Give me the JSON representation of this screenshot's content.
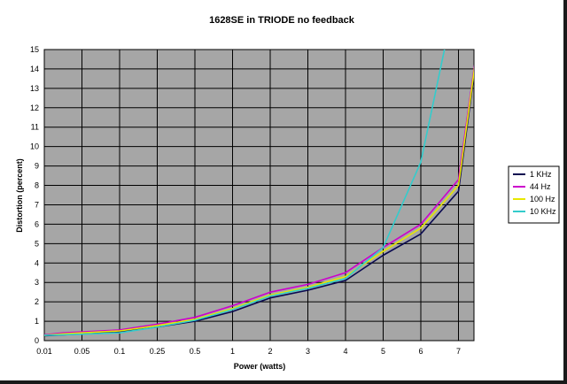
{
  "chart_data": {
    "type": "line",
    "title": "1628SE in TRIODE no feedback",
    "xlabel": "Power (watts)",
    "ylabel": "Distortion (percent)",
    "categories": [
      "0.01",
      "0.05",
      "0.1",
      "0.25",
      "0.5",
      "1",
      "2",
      "3",
      "4",
      "5",
      "6",
      "7"
    ],
    "ylim": [
      0,
      15
    ],
    "yticks": [
      0,
      1,
      2,
      3,
      4,
      5,
      6,
      7,
      8,
      9,
      10,
      11,
      12,
      13,
      14,
      15
    ],
    "grid": true,
    "legend_position": "right",
    "plot_background": "#a6a6a6",
    "series": [
      {
        "name": "1 KHz",
        "color": "#0a0a50",
        "points": [
          [
            0,
            0.25
          ],
          [
            0.5,
            0.3
          ],
          [
            2,
            0.45
          ],
          [
            3,
            0.7
          ],
          [
            4,
            1.0
          ],
          [
            5,
            1.5
          ],
          [
            6,
            2.2
          ],
          [
            7,
            2.6
          ],
          [
            8,
            3.1
          ],
          [
            9,
            4.4
          ],
          [
            10,
            5.5
          ],
          [
            11,
            7.7
          ],
          [
            11.5,
            15
          ]
        ]
      },
      {
        "name": "44 Hz",
        "color": "#cc00cc",
        "points": [
          [
            0,
            0.3
          ],
          [
            0.5,
            0.4
          ],
          [
            2,
            0.55
          ],
          [
            3,
            0.85
          ],
          [
            4,
            1.2
          ],
          [
            5,
            1.8
          ],
          [
            6,
            2.5
          ],
          [
            7,
            2.9
          ],
          [
            8,
            3.5
          ],
          [
            9,
            4.8
          ],
          [
            10,
            6.0
          ],
          [
            11,
            8.3
          ],
          [
            11.5,
            15.2
          ]
        ]
      },
      {
        "name": "100 Hz",
        "color": "#e8e800",
        "points": [
          [
            0,
            0.28
          ],
          [
            0.5,
            0.35
          ],
          [
            2,
            0.5
          ],
          [
            3,
            0.78
          ],
          [
            4,
            1.1
          ],
          [
            5,
            1.65
          ],
          [
            6,
            2.35
          ],
          [
            7,
            2.75
          ],
          [
            8,
            3.3
          ],
          [
            9,
            4.6
          ],
          [
            10,
            5.8
          ],
          [
            11,
            8.0
          ],
          [
            11.5,
            15.1
          ]
        ]
      },
      {
        "name": "10 KHz",
        "color": "#33cccc",
        "points": [
          [
            0,
            0.28
          ],
          [
            0.5,
            0.3
          ],
          [
            2,
            0.4
          ],
          [
            3,
            0.7
          ],
          [
            4,
            1.05
          ],
          [
            5,
            1.6
          ],
          [
            6,
            2.3
          ],
          [
            7,
            2.7
          ],
          [
            8,
            3.2
          ],
          [
            9,
            4.8
          ],
          [
            10,
            9.2
          ],
          [
            10.65,
            15.2
          ]
        ]
      }
    ]
  }
}
